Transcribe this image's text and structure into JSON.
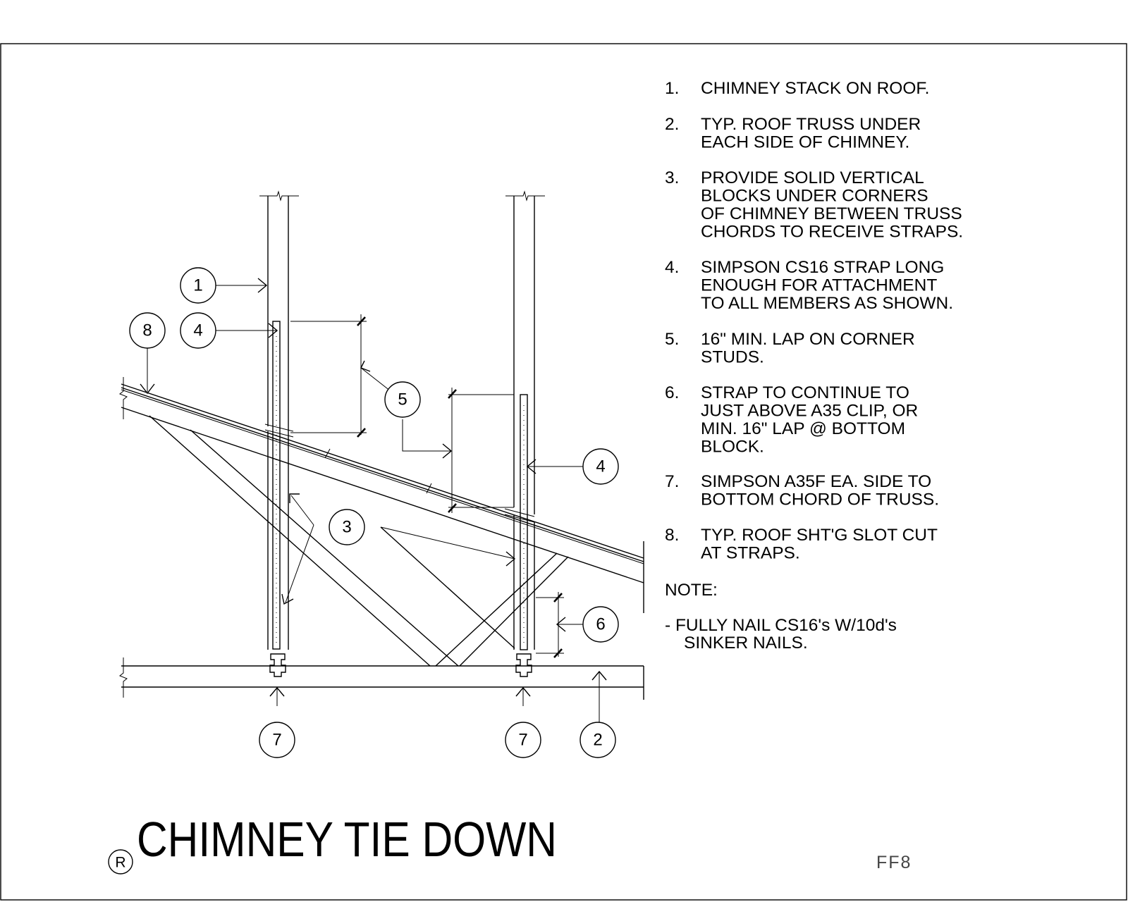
{
  "title": "CHIMNEY TIE DOWN",
  "registered_mark": "R",
  "sheet_number": "FF8",
  "callouts": [
    "1",
    "2",
    "3",
    "4",
    "4",
    "5",
    "6",
    "7",
    "7",
    "8"
  ],
  "notes": [
    {
      "num": "1.",
      "lines": [
        "CHIMNEY STACK ON ROOF."
      ]
    },
    {
      "num": "2.",
      "lines": [
        "TYP. ROOF TRUSS UNDER",
        "EACH SIDE OF CHIMNEY."
      ]
    },
    {
      "num": "3.",
      "lines": [
        "PROVIDE SOLID VERTICAL",
        "BLOCKS UNDER CORNERS",
        "OF CHIMNEY BETWEEN TRUSS",
        "CHORDS TO RECEIVE STRAPS."
      ]
    },
    {
      "num": "4.",
      "lines": [
        "SIMPSON CS16 STRAP LONG",
        "ENOUGH FOR ATTACHMENT",
        "TO ALL MEMBERS AS SHOWN."
      ]
    },
    {
      "num": "5.",
      "lines": [
        "16\" MIN. LAP ON CORNER",
        "STUDS."
      ]
    },
    {
      "num": "6.",
      "lines": [
        "STRAP TO CONTINUE TO",
        "JUST ABOVE A35 CLIP, OR",
        "MIN. 16\" LAP @ BOTTOM",
        "BLOCK."
      ]
    },
    {
      "num": "7.",
      "lines": [
        "SIMPSON A35F EA. SIDE TO",
        "BOTTOM CHORD OF TRUSS."
      ]
    },
    {
      "num": "8.",
      "lines": [
        "TYP. ROOF SHT'G SLOT CUT",
        "AT STRAPS."
      ]
    }
  ],
  "note_heading": "NOTE:",
  "note_body": [
    "- FULLY NAIL CS16's W/10d's",
    "SINKER NAILS."
  ]
}
